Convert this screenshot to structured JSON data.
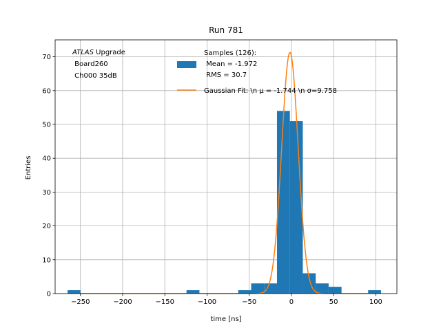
{
  "chart_data": {
    "type": "histogram",
    "title": "Run 781",
    "xlabel": "time [ns]",
    "ylabel": "Entries",
    "xlim": [
      -280,
      125
    ],
    "ylim": [
      0,
      75
    ],
    "xticks": [
      -250,
      -200,
      -150,
      -100,
      -50,
      0,
      50,
      100
    ],
    "yticks": [
      0,
      10,
      20,
      30,
      40,
      50,
      60,
      70
    ],
    "grid": true,
    "annotation": {
      "italic": "ATLAS",
      "rest": " Upgrade",
      "line2": " Board260",
      "line3": " Ch000 35dB"
    },
    "legend": {
      "placement": "upper center",
      "entries": [
        {
          "kind": "patch",
          "lines": [
            "Samples (126):",
            " Mean = -1.972",
            " RMS = 30.7"
          ]
        },
        {
          "kind": "line",
          "text": "Gaussian Fit: \\n μ = -1.744 \\n σ=9.758"
        }
      ]
    },
    "histogram": {
      "name": "Samples (126):",
      "color": "#1f77b4",
      "bins": [
        {
          "x0": -265.2,
          "x1": -249.9,
          "count": 1
        },
        {
          "x0": -124.3,
          "x1": -109.0,
          "count": 1
        },
        {
          "x0": -63.0,
          "x1": -47.7,
          "count": 1
        },
        {
          "x0": -47.7,
          "x1": -32.4,
          "count": 3
        },
        {
          "x0": -32.4,
          "x1": -17.1,
          "count": 3
        },
        {
          "x0": -17.1,
          "x1": -1.8,
          "count": 54
        },
        {
          "x0": -1.8,
          "x1": 13.5,
          "count": 51
        },
        {
          "x0": 13.5,
          "x1": 28.8,
          "count": 6
        },
        {
          "x0": 28.8,
          "x1": 44.1,
          "count": 3
        },
        {
          "x0": 44.1,
          "x1": 59.4,
          "count": 2
        },
        {
          "x0": 90.9,
          "x1": 106.2,
          "count": 1
        }
      ]
    },
    "fit": {
      "name": "Gaussian Fit",
      "color": "#ff7f0e",
      "mu": -1.744,
      "sigma": 9.758,
      "amplitude": 71.3,
      "x_range": [
        -265,
        106
      ]
    }
  }
}
